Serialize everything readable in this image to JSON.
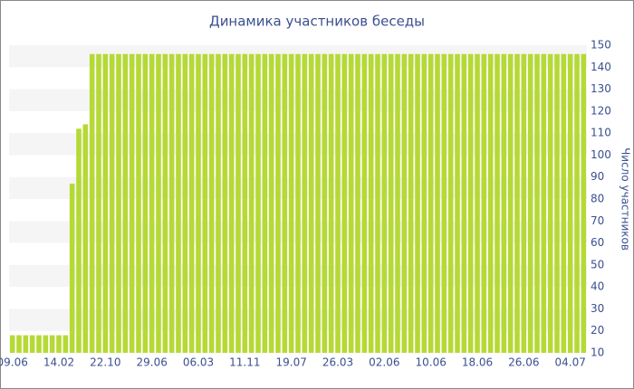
{
  "chart_data": {
    "type": "bar",
    "title": "Динамика участников беседы",
    "y_label": "Число участников",
    "categories": [
      "09.06",
      null,
      null,
      null,
      null,
      null,
      null,
      "14.02",
      null,
      null,
      null,
      null,
      null,
      null,
      "22.10",
      null,
      null,
      null,
      null,
      null,
      null,
      "29.06",
      null,
      null,
      null,
      null,
      null,
      null,
      "06.03",
      null,
      null,
      null,
      null,
      null,
      null,
      "11.11",
      null,
      null,
      null,
      null,
      null,
      null,
      "19.07",
      null,
      null,
      null,
      null,
      null,
      null,
      "26.03",
      null,
      null,
      null,
      null,
      null,
      null,
      "02.06",
      null,
      null,
      null,
      null,
      null,
      null,
      "10.06",
      null,
      null,
      null,
      null,
      null,
      null,
      "18.06",
      null,
      null,
      null,
      null,
      null,
      null,
      "26.06",
      null,
      null,
      null,
      null,
      null,
      null,
      "04.07",
      null,
      null
    ],
    "values": [
      18,
      18,
      18,
      18,
      18,
      18,
      18,
      18,
      18,
      87,
      112,
      114,
      146,
      146,
      146,
      146,
      146,
      146,
      146,
      146,
      146,
      146,
      146,
      146,
      146,
      146,
      146,
      146,
      146,
      146,
      146,
      146,
      146,
      146,
      146,
      146,
      146,
      146,
      146,
      146,
      146,
      146,
      146,
      146,
      146,
      146,
      146,
      146,
      146,
      146,
      146,
      146,
      146,
      146,
      146,
      146,
      146,
      146,
      146,
      146,
      146,
      146,
      146,
      146,
      146,
      146,
      146,
      146,
      146,
      146,
      146,
      146,
      146,
      146,
      146,
      146,
      146,
      146,
      146,
      146,
      146,
      146,
      146,
      146,
      146,
      146,
      146
    ],
    "color": "#b5d935",
    "ylim": [
      10,
      150
    ],
    "yticks": [
      10,
      20,
      30,
      40,
      50,
      60,
      70,
      80,
      90,
      100,
      110,
      120,
      130,
      140,
      150
    ],
    "grid": "bands",
    "y_axis_side": "right"
  }
}
